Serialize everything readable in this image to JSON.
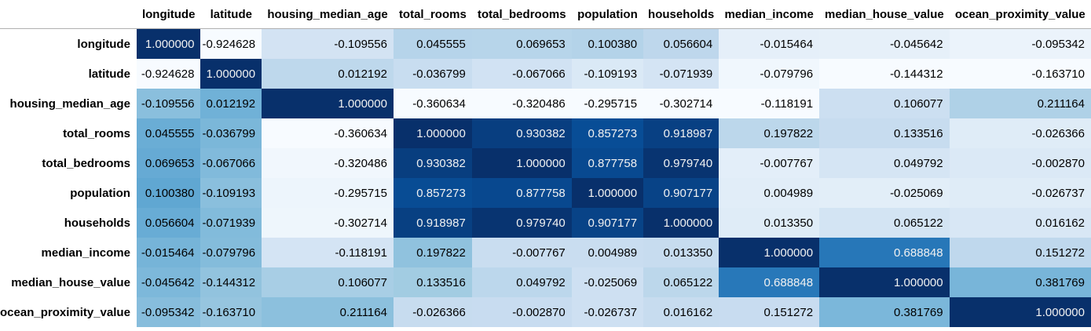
{
  "columns": [
    "longitude",
    "latitude",
    "housing_median_age",
    "total_rooms",
    "total_bedrooms",
    "population",
    "households",
    "median_income",
    "median_house_value",
    "ocean_proximity_value"
  ],
  "rows": [
    {
      "label": "longitude",
      "values": [
        "1.000000",
        "-0.924628",
        "-0.109556",
        "0.045555",
        "0.069653",
        "0.100380",
        "0.056604",
        "-0.015464",
        "-0.045642",
        "-0.095342"
      ]
    },
    {
      "label": "latitude",
      "values": [
        "-0.924628",
        "1.000000",
        "0.012192",
        "-0.036799",
        "-0.067066",
        "-0.109193",
        "-0.071939",
        "-0.079796",
        "-0.144312",
        "-0.163710"
      ]
    },
    {
      "label": "housing_median_age",
      "values": [
        "-0.109556",
        "0.012192",
        "1.000000",
        "-0.360634",
        "-0.320486",
        "-0.295715",
        "-0.302714",
        "-0.118191",
        "0.106077",
        "0.211164"
      ]
    },
    {
      "label": "total_rooms",
      "values": [
        "0.045555",
        "-0.036799",
        "-0.360634",
        "1.000000",
        "0.930382",
        "0.857273",
        "0.918987",
        "0.197822",
        "0.133516",
        "-0.026366"
      ]
    },
    {
      "label": "total_bedrooms",
      "values": [
        "0.069653",
        "-0.067066",
        "-0.320486",
        "0.930382",
        "1.000000",
        "0.877758",
        "0.979740",
        "-0.007767",
        "0.049792",
        "-0.002870"
      ]
    },
    {
      "label": "population",
      "values": [
        "0.100380",
        "-0.109193",
        "-0.295715",
        "0.857273",
        "0.877758",
        "1.000000",
        "0.907177",
        "0.004989",
        "-0.025069",
        "-0.026737"
      ]
    },
    {
      "label": "households",
      "values": [
        "0.056604",
        "-0.071939",
        "-0.302714",
        "0.918987",
        "0.979740",
        "0.907177",
        "1.000000",
        "0.013350",
        "0.065122",
        "0.016162"
      ]
    },
    {
      "label": "median_income",
      "values": [
        "-0.015464",
        "-0.079796",
        "-0.118191",
        "0.197822",
        "-0.007767",
        "0.004989",
        "0.013350",
        "1.000000",
        "0.688848",
        "0.151272"
      ]
    },
    {
      "label": "median_house_value",
      "values": [
        "-0.045642",
        "-0.144312",
        "0.106077",
        "0.133516",
        "0.049792",
        "-0.025069",
        "0.065122",
        "0.688848",
        "1.000000",
        "0.381769"
      ]
    },
    {
      "label": "ocean_proximity_value",
      "values": [
        "-0.095342",
        "-0.163710",
        "0.211164",
        "-0.026366",
        "-0.002870",
        "-0.026737",
        "0.016162",
        "0.151272",
        "0.381769",
        "1.000000"
      ]
    }
  ],
  "colormap": {
    "name": "Blues",
    "stops": [
      "#f7fbff",
      "#deebf7",
      "#c6dbef",
      "#9ecae1",
      "#6baed6",
      "#4292c6",
      "#2171b5",
      "#08519c",
      "#08306b"
    ],
    "text_dark": "#000000",
    "text_light": "#f1f1f1"
  }
}
